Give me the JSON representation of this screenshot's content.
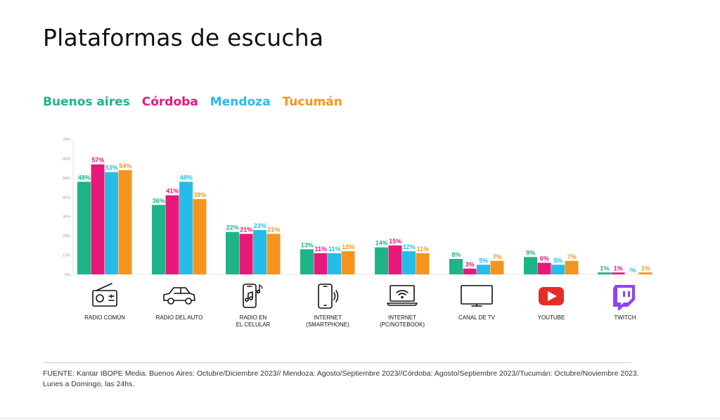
{
  "page": {
    "title": "Plataformas de escucha",
    "source_line1": "FUENTE: Kantar IBOPE Media. Buenos Aires: Octubre/Diciembre 2023// Mendoza: Agosto/Septiembre 2023//Córdoba: Agosto/Septiembre 2023//Tucumán: Octubre/Noviembre 2023.",
    "source_line2": "Lunes a Domingo, las 24hs."
  },
  "legend": [
    {
      "label": "Buenos aires",
      "color": "#1db487"
    },
    {
      "label": "Córdoba",
      "color": "#e6197a"
    },
    {
      "label": "Mendoza",
      "color": "#25bde8"
    },
    {
      "label": "Tucumán",
      "color": "#f7941d"
    }
  ],
  "chart_data": {
    "type": "bar",
    "title": "Plataformas de escucha",
    "ylim": [
      0,
      70
    ],
    "y_ticks": [
      "0%",
      "10%",
      "20%",
      "30%",
      "40%",
      "50%",
      "60%",
      "70%"
    ],
    "grid": false,
    "legend_position": "top-left",
    "categories": [
      {
        "label": [
          "RADIO COMÚN"
        ],
        "icon": "radio-icon"
      },
      {
        "label": [
          "RADIO DEL AUTO"
        ],
        "icon": "car-icon"
      },
      {
        "label": [
          "RADIO EN",
          "EL CELULAR"
        ],
        "icon": "phone-music-icon"
      },
      {
        "label": [
          "INTERNET",
          "(SMARTPHONE)"
        ],
        "icon": "smartphone-icon"
      },
      {
        "label": [
          "INTERNET",
          "(PC/NOTEBOOK)"
        ],
        "icon": "laptop-wifi-icon"
      },
      {
        "label": [
          "CANAL DE TV"
        ],
        "icon": "tv-icon"
      },
      {
        "label": [
          "YOUTUBE"
        ],
        "icon": "youtube-icon"
      },
      {
        "label": [
          "TWITCH"
        ],
        "icon": "twitch-icon"
      }
    ],
    "series": [
      {
        "name": "Buenos aires",
        "color": "#1db487",
        "values": [
          48,
          36,
          22,
          13,
          14,
          8,
          9,
          1
        ],
        "labels": [
          "48%",
          "36%",
          "22%",
          "13%",
          "14%",
          "8%",
          "9%",
          "1%"
        ]
      },
      {
        "name": "Córdoba",
        "color": "#e6197a",
        "values": [
          57,
          41,
          21,
          11,
          15,
          3,
          6,
          1
        ],
        "labels": [
          "57%",
          "41%",
          "21%",
          "11%",
          "15%",
          "3%",
          "6%",
          "1%"
        ]
      },
      {
        "name": "Mendoza",
        "color": "#25bde8",
        "values": [
          53,
          48,
          23,
          11,
          12,
          5,
          5,
          0
        ],
        "labels": [
          "53%",
          "48%",
          "23%",
          "11%",
          "12%",
          "5%",
          "5%",
          "-%"
        ]
      },
      {
        "name": "Tucumán",
        "color": "#f7941d",
        "values": [
          54,
          39,
          21,
          12,
          11,
          7,
          7,
          1
        ],
        "labels": [
          "54%",
          "39%",
          "21%",
          "12%",
          "11%",
          "7%",
          "7%",
          "1%"
        ]
      }
    ]
  }
}
